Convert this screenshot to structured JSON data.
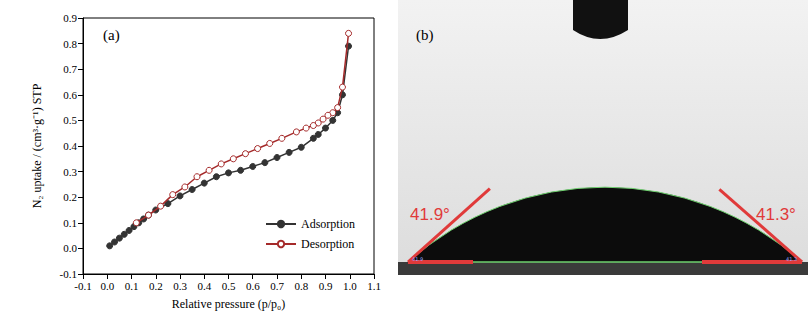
{
  "chart_data": {
    "type": "line",
    "title": "(a)",
    "x_label": "Relative pressure (p/p₀)",
    "y_label": "N₂ uptake / (cm³·g⁻¹) STP",
    "xlim": [
      -0.1,
      1.1
    ],
    "xticks": [
      -0.1,
      {
        "value": 0,
        "label": "0.0"
      },
      0.1,
      0.2,
      0.3,
      0.4,
      0.5,
      0.6,
      0.7,
      0.8,
      0.9,
      {
        "value": 1,
        "label": "1.0"
      },
      1.1
    ],
    "ylim": [
      -0.1,
      0.9
    ],
    "yticks": [
      -0.1,
      {
        "value": 0,
        "label": "0.0"
      },
      0.1,
      0.2,
      0.3,
      0.4,
      0.5,
      0.6,
      0.7,
      0.8,
      0.9
    ],
    "grid": false,
    "legend": "lower right",
    "series": [
      {
        "name": "Adsorption",
        "color": "#333333",
        "marker": "circle",
        "x": [
          0.01,
          0.03,
          0.05,
          0.07,
          0.09,
          0.11,
          0.13,
          0.15,
          0.17,
          0.2,
          0.25,
          0.3,
          0.35,
          0.4,
          0.45,
          0.5,
          0.55,
          0.6,
          0.65,
          0.7,
          0.75,
          0.8,
          0.85,
          0.87,
          0.9,
          0.93,
          0.95,
          0.97,
          0.995
        ],
        "values": [
          0.01,
          0.025,
          0.04,
          0.055,
          0.07,
          0.085,
          0.1,
          0.115,
          0.13,
          0.15,
          0.175,
          0.205,
          0.23,
          0.255,
          0.28,
          0.295,
          0.305,
          0.32,
          0.335,
          0.355,
          0.375,
          0.395,
          0.43,
          0.445,
          0.47,
          0.5,
          0.53,
          0.6,
          0.79
        ]
      },
      {
        "name": "Desorption",
        "color": "#a52a2a",
        "marker": "open_circle",
        "x": [
          0.995,
          0.97,
          0.95,
          0.93,
          0.91,
          0.89,
          0.87,
          0.85,
          0.82,
          0.78,
          0.72,
          0.67,
          0.62,
          0.57,
          0.52,
          0.47,
          0.42,
          0.37,
          0.32,
          0.27,
          0.22,
          0.17,
          0.12
        ],
        "values": [
          0.84,
          0.63,
          0.55,
          0.53,
          0.52,
          0.505,
          0.49,
          0.48,
          0.47,
          0.455,
          0.43,
          0.41,
          0.39,
          0.37,
          0.35,
          0.33,
          0.305,
          0.28,
          0.24,
          0.21,
          0.165,
          0.13,
          0.1
        ]
      }
    ]
  },
  "panel_b": {
    "label": "(b)",
    "angles": [
      {
        "value": 41.9,
        "label": "41.9°",
        "side": "left"
      },
      {
        "value": 41.3,
        "label": "41.3°",
        "side": "right"
      }
    ]
  }
}
